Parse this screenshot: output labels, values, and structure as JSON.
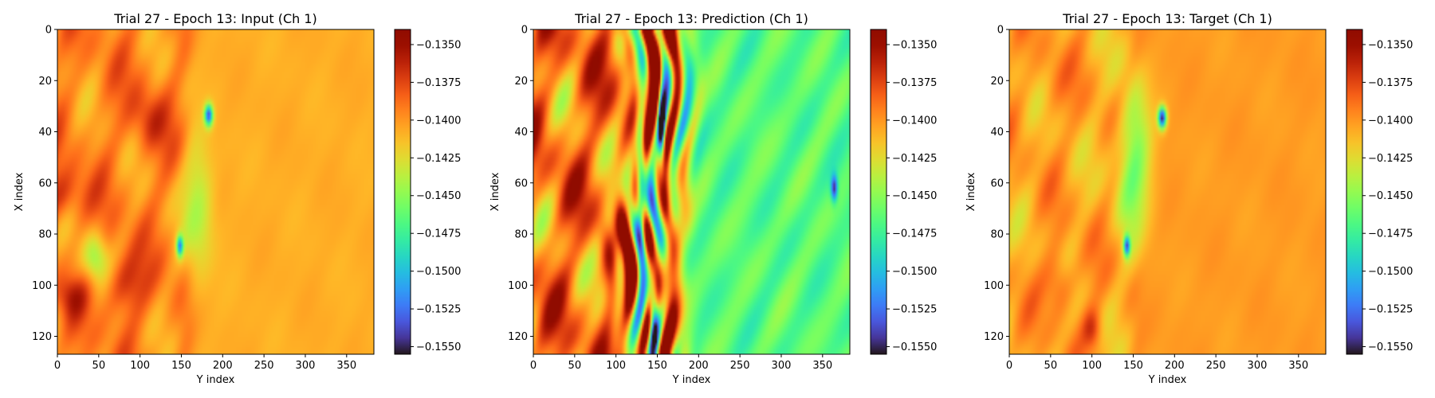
{
  "figure": {
    "colormap": "turbo",
    "colorbar_ticks": [
      -0.135,
      -0.1375,
      -0.14,
      -0.1425,
      -0.145,
      -0.1475,
      -0.15,
      -0.1525,
      -0.155
    ],
    "colorbar_tick_labels": [
      "−0.1350",
      "−0.1375",
      "−0.1400",
      "−0.1425",
      "−0.1450",
      "−0.1475",
      "−0.1500",
      "−0.1525",
      "−0.1550"
    ]
  },
  "chart_data": [
    {
      "type": "heatmap",
      "title": "Trial 27 - Epoch 13: Input (Ch 1)",
      "xlabel": "Y index",
      "ylabel": "X index",
      "xlim": [
        0,
        383
      ],
      "ylim": [
        127,
        0
      ],
      "x_ticks": [
        0,
        50,
        100,
        150,
        200,
        250,
        300,
        350
      ],
      "y_ticks": [
        0,
        20,
        40,
        60,
        80,
        100,
        120
      ],
      "color_range": [
        -0.1555,
        -0.134
      ],
      "field": {
        "left_region_value": -0.1395,
        "right_region_value": -0.1408,
        "front_y": 160,
        "features": [
          {
            "x": 65,
            "y": 0,
            "sx": 10,
            "sy": 30,
            "value": -0.1365
          },
          {
            "x": 35,
            "y": 110,
            "sx": 12,
            "sy": 22,
            "value": -0.137
          },
          {
            "x": 100,
            "y": 80,
            "sx": 12,
            "sy": 25,
            "value": -0.1362
          },
          {
            "x": 105,
            "y": 15,
            "sx": 8,
            "sy": 18,
            "value": -0.1368
          },
          {
            "x": 70,
            "y": 170,
            "sx": 25,
            "sy": 18,
            "value": -0.144
          },
          {
            "x": 90,
            "y": 45,
            "sx": 10,
            "sy": 15,
            "value": -0.1445
          },
          {
            "x": 33,
            "y": 183,
            "sx": 4,
            "sy": 5,
            "value": -0.153
          },
          {
            "x": 85,
            "y": 148,
            "sx": 4,
            "sy": 4,
            "value": -0.15
          }
        ]
      }
    },
    {
      "type": "heatmap",
      "title": "Trial 27 - Epoch 13: Prediction (Ch 1)",
      "xlabel": "Y index",
      "ylabel": "X index",
      "xlim": [
        0,
        383
      ],
      "ylim": [
        127,
        0
      ],
      "x_ticks": [
        0,
        50,
        100,
        150,
        200,
        250,
        300,
        350
      ],
      "y_ticks": [
        0,
        20,
        40,
        60,
        80,
        100,
        120
      ],
      "color_range": [
        -0.1555,
        -0.134
      ],
      "field": {
        "left_region_value": -0.139,
        "right_region_value": -0.1465,
        "front_y": 180,
        "features": [
          {
            "x": 10,
            "y": 150,
            "sx": 25,
            "sy": 8,
            "value": -0.134
          },
          {
            "x": 60,
            "y": 130,
            "sx": 25,
            "sy": 6,
            "value": -0.1555
          },
          {
            "x": 110,
            "y": 145,
            "sx": 15,
            "sy": 6,
            "value": -0.1555
          },
          {
            "x": 40,
            "y": 155,
            "sx": 20,
            "sy": 5,
            "value": -0.155
          },
          {
            "x": 62,
            "y": 365,
            "sx": 5,
            "sy": 4,
            "value": -0.155
          }
        ]
      }
    },
    {
      "type": "heatmap",
      "title": "Trial 27 - Epoch 13: Target (Ch 1)",
      "xlabel": "Y index",
      "ylabel": "X index",
      "xlim": [
        0,
        383
      ],
      "ylim": [
        127,
        0
      ],
      "x_ticks": [
        0,
        50,
        100,
        150,
        200,
        250,
        300,
        350
      ],
      "y_ticks": [
        0,
        20,
        40,
        60,
        80,
        100,
        120
      ],
      "color_range": [
        -0.1555,
        -0.134
      ],
      "field": {
        "left_region_value": -0.1405,
        "right_region_value": -0.1402,
        "front_y": 155,
        "features": [
          {
            "x": 100,
            "y": 60,
            "sx": 12,
            "sy": 18,
            "value": -0.1375
          },
          {
            "x": 118,
            "y": 100,
            "sx": 8,
            "sy": 12,
            "value": -0.1368
          },
          {
            "x": 20,
            "y": 50,
            "sx": 14,
            "sy": 20,
            "value": -0.1395
          },
          {
            "x": 50,
            "y": 150,
            "sx": 28,
            "sy": 20,
            "value": -0.146
          },
          {
            "x": 34,
            "y": 185,
            "sx": 4,
            "sy": 5,
            "value": -0.1545
          },
          {
            "x": 85,
            "y": 142,
            "sx": 4,
            "sy": 4,
            "value": -0.152
          }
        ]
      }
    }
  ]
}
